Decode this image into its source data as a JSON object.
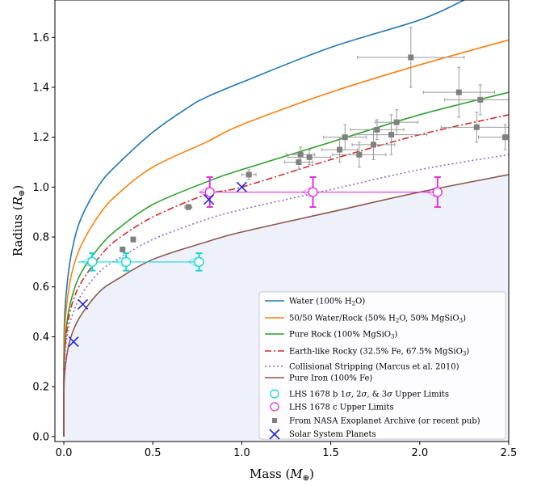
{
  "chart_data": {
    "type": "scatter",
    "title": "",
    "xlabel": "Mass (",
    "xlabel_symbol": "M",
    "xlabel_sub": "⊕",
    "xlabel_close": ")",
    "ylabel": "Radius (",
    "ylabel_symbol": "R",
    "ylabel_sub": "⊕",
    "ylabel_close": ")",
    "xlim": [
      -0.05,
      2.5
    ],
    "ylim": [
      -0.02,
      1.75
    ],
    "xticks": [
      0.0,
      0.5,
      1.0,
      1.5,
      2.0,
      2.5
    ],
    "xtick_labels": [
      "0.0",
      "0.5",
      "1.0",
      "1.5",
      "2.0",
      "2.5"
    ],
    "yticks": [
      0.0,
      0.2,
      0.4,
      0.6,
      0.8,
      1.0,
      1.2,
      1.4,
      1.6
    ],
    "ytick_labels": [
      "0.0",
      "0.2",
      "0.4",
      "0.6",
      "0.8",
      "1.0",
      "1.2",
      "1.4",
      "1.6"
    ],
    "legend_position": "lower-right",
    "shade_color": "#eef0fa",
    "curves": [
      {
        "key": "water",
        "color": "#1f77b4",
        "dash": "",
        "label": "Water (100% H",
        "points": [
          [
            0,
            0
          ],
          [
            0.002,
            0.42
          ],
          [
            0.02,
            0.62
          ],
          [
            0.05,
            0.76
          ],
          [
            0.1,
            0.88
          ],
          [
            0.2,
            1.01
          ],
          [
            0.3,
            1.09
          ],
          [
            0.5,
            1.22
          ],
          [
            0.7,
            1.32
          ],
          [
            0.8,
            1.36
          ],
          [
            1.0,
            1.42
          ],
          [
            1.5,
            1.56
          ],
          [
            2.0,
            1.67
          ],
          [
            2.25,
            1.75
          ]
        ]
      },
      {
        "key": "water_rock",
        "color": "#ff7f0e",
        "dash": "",
        "label": "50/50 Water/Rock (50% H",
        "points": [
          [
            0,
            0
          ],
          [
            0.002,
            0.37
          ],
          [
            0.02,
            0.55
          ],
          [
            0.05,
            0.67
          ],
          [
            0.1,
            0.77
          ],
          [
            0.2,
            0.89
          ],
          [
            0.3,
            0.97
          ],
          [
            0.5,
            1.08
          ],
          [
            0.8,
            1.18
          ],
          [
            1.0,
            1.25
          ],
          [
            1.5,
            1.38
          ],
          [
            2.0,
            1.49
          ],
          [
            2.5,
            1.59
          ]
        ]
      },
      {
        "key": "rock",
        "color": "#2ca02c",
        "dash": "",
        "label": "Pure Rock (100% MgSiO",
        "points": [
          [
            0,
            0
          ],
          [
            0.002,
            0.31
          ],
          [
            0.02,
            0.47
          ],
          [
            0.05,
            0.57
          ],
          [
            0.1,
            0.66
          ],
          [
            0.2,
            0.76
          ],
          [
            0.3,
            0.83
          ],
          [
            0.5,
            0.93
          ],
          [
            0.8,
            1.02
          ],
          [
            1.0,
            1.07
          ],
          [
            1.5,
            1.18
          ],
          [
            2.0,
            1.29
          ],
          [
            2.5,
            1.38
          ]
        ]
      },
      {
        "key": "earth",
        "color": "#d62728",
        "dash": "8 3 2 3",
        "label": "Earth-like Rocky (32.5% Fe, 67.5% MgSiO",
        "points": [
          [
            0,
            0
          ],
          [
            0.002,
            0.29
          ],
          [
            0.02,
            0.44
          ],
          [
            0.05,
            0.54
          ],
          [
            0.1,
            0.62
          ],
          [
            0.2,
            0.72
          ],
          [
            0.3,
            0.79
          ],
          [
            0.5,
            0.88
          ],
          [
            0.8,
            0.97
          ],
          [
            1.0,
            1.0
          ],
          [
            1.5,
            1.11
          ],
          [
            2.0,
            1.21
          ],
          [
            2.5,
            1.29
          ]
        ]
      },
      {
        "key": "stripping",
        "color": "#9467bd",
        "dash": "2 3",
        "label": "Collisional Stripping (Marcus et al. 2010)",
        "points": [
          [
            0,
            0
          ],
          [
            0.002,
            0.27
          ],
          [
            0.02,
            0.41
          ],
          [
            0.05,
            0.49
          ],
          [
            0.1,
            0.57
          ],
          [
            0.2,
            0.66
          ],
          [
            0.3,
            0.71
          ],
          [
            0.5,
            0.79
          ],
          [
            0.8,
            0.87
          ],
          [
            1.0,
            0.91
          ],
          [
            1.5,
            0.99
          ],
          [
            2.0,
            1.07
          ],
          [
            2.5,
            1.13
          ]
        ]
      },
      {
        "key": "iron",
        "color": "#8c564b",
        "dash": "",
        "label": "Pure Iron (100% Fe)",
        "points": [
          [
            0,
            0
          ],
          [
            0.002,
            0.22
          ],
          [
            0.02,
            0.34
          ],
          [
            0.05,
            0.42
          ],
          [
            0.1,
            0.49
          ],
          [
            0.2,
            0.58
          ],
          [
            0.3,
            0.63
          ],
          [
            0.5,
            0.71
          ],
          [
            0.8,
            0.78
          ],
          [
            1.0,
            0.82
          ],
          [
            1.5,
            0.9
          ],
          [
            2.0,
            0.98
          ],
          [
            2.5,
            1.05
          ]
        ]
      }
    ],
    "lhs1678b": {
      "label": "LHS 1678 b 1",
      "label_rest": " Upper Limits",
      "color": "#17d6d6",
      "y": 0.7,
      "y_err": 0.035,
      "x_values": [
        0.16,
        0.35,
        0.76
      ],
      "x_left": 0.08
    },
    "lhs1678c": {
      "label": "LHS 1678 c Upper Limits",
      "color": "#e032e0",
      "y": 0.98,
      "y_err": 0.06,
      "x_values": [
        0.82,
        1.4,
        2.1
      ],
      "x_left": 0.76
    },
    "exoplanets": {
      "label": "From NASA Exoplanet Archive (or recent pub)",
      "color": "#808080",
      "points": [
        {
          "x": 0.7,
          "y": 0.92,
          "xe": 0.02,
          "ye": 0.01
        },
        {
          "x": 0.33,
          "y": 0.75,
          "xe": 0.01,
          "ye": 0.01
        },
        {
          "x": 0.39,
          "y": 0.79,
          "xe": 0.01,
          "ye": 0.01
        },
        {
          "x": 1.04,
          "y": 1.05,
          "xe": 0.04,
          "ye": 0.02
        },
        {
          "x": 1.32,
          "y": 1.1,
          "xe": 0.08,
          "ye": 0.03
        },
        {
          "x": 1.33,
          "y": 1.13,
          "xe": 0.08,
          "ye": 0.03
        },
        {
          "x": 1.38,
          "y": 1.12,
          "xe": 0.12,
          "ye": 0.03
        },
        {
          "x": 1.55,
          "y": 1.15,
          "xe": 0.1,
          "ye": 0.05
        },
        {
          "x": 1.58,
          "y": 1.2,
          "xe": 0.12,
          "ye": 0.05
        },
        {
          "x": 1.66,
          "y": 1.13,
          "xe": 0.15,
          "ye": 0.05
        },
        {
          "x": 1.74,
          "y": 1.17,
          "xe": 0.12,
          "ye": 0.06
        },
        {
          "x": 1.76,
          "y": 1.23,
          "xe": 0.15,
          "ye": 0.04
        },
        {
          "x": 1.84,
          "y": 1.21,
          "xe": 0.2,
          "ye": 0.08
        },
        {
          "x": 1.87,
          "y": 1.26,
          "xe": 0.12,
          "ye": 0.05
        },
        {
          "x": 1.95,
          "y": 1.52,
          "xe": 0.3,
          "ye": 0.12
        },
        {
          "x": 2.22,
          "y": 1.38,
          "xe": 0.2,
          "ye": 0.1
        },
        {
          "x": 2.32,
          "y": 1.24,
          "xe": 0.2,
          "ye": 0.06
        },
        {
          "x": 2.34,
          "y": 1.35,
          "xe": 0.2,
          "ye": 0.06
        },
        {
          "x": 2.48,
          "y": 1.2,
          "xe": 0.15,
          "ye": 0.05
        }
      ]
    },
    "solar_system": {
      "label": "Solar System Planets",
      "color": "#2424e0",
      "points": [
        {
          "x": 0.055,
          "y": 0.38
        },
        {
          "x": 0.107,
          "y": 0.53
        },
        {
          "x": 0.815,
          "y": 0.95
        },
        {
          "x": 1.0,
          "y": 1.0
        }
      ]
    }
  }
}
